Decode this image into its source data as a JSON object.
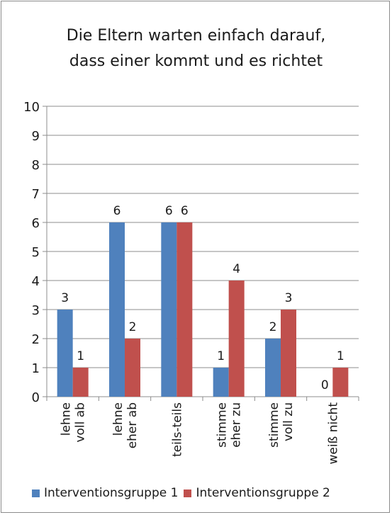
{
  "chart_data": {
    "type": "bar",
    "title_lines": [
      "Die Eltern warten einfach darauf,",
      "dass einer kommt und es richtet"
    ],
    "xlabel": "",
    "ylabel": "",
    "ylim": [
      0,
      10
    ],
    "yticks": [
      "0",
      "1",
      "2",
      "3",
      "4",
      "5",
      "6",
      "7",
      "8",
      "9",
      "10"
    ],
    "categories": [
      [
        "lehne",
        "voll ab"
      ],
      [
        "lehne",
        "eher ab"
      ],
      [
        "teils-teils"
      ],
      [
        "stimme",
        "eher zu"
      ],
      [
        "stimme",
        "voll zu"
      ],
      [
        "weiß nicht"
      ]
    ],
    "series": [
      {
        "name": "Interventionsgruppe 1",
        "color": "#4f81bd",
        "values": [
          3,
          6,
          6,
          1,
          2,
          0
        ]
      },
      {
        "name": "Interventionsgruppe 2",
        "color": "#c0504d",
        "values": [
          1,
          2,
          6,
          4,
          3,
          1
        ]
      }
    ],
    "grid": true,
    "legend_position": "bottom"
  }
}
